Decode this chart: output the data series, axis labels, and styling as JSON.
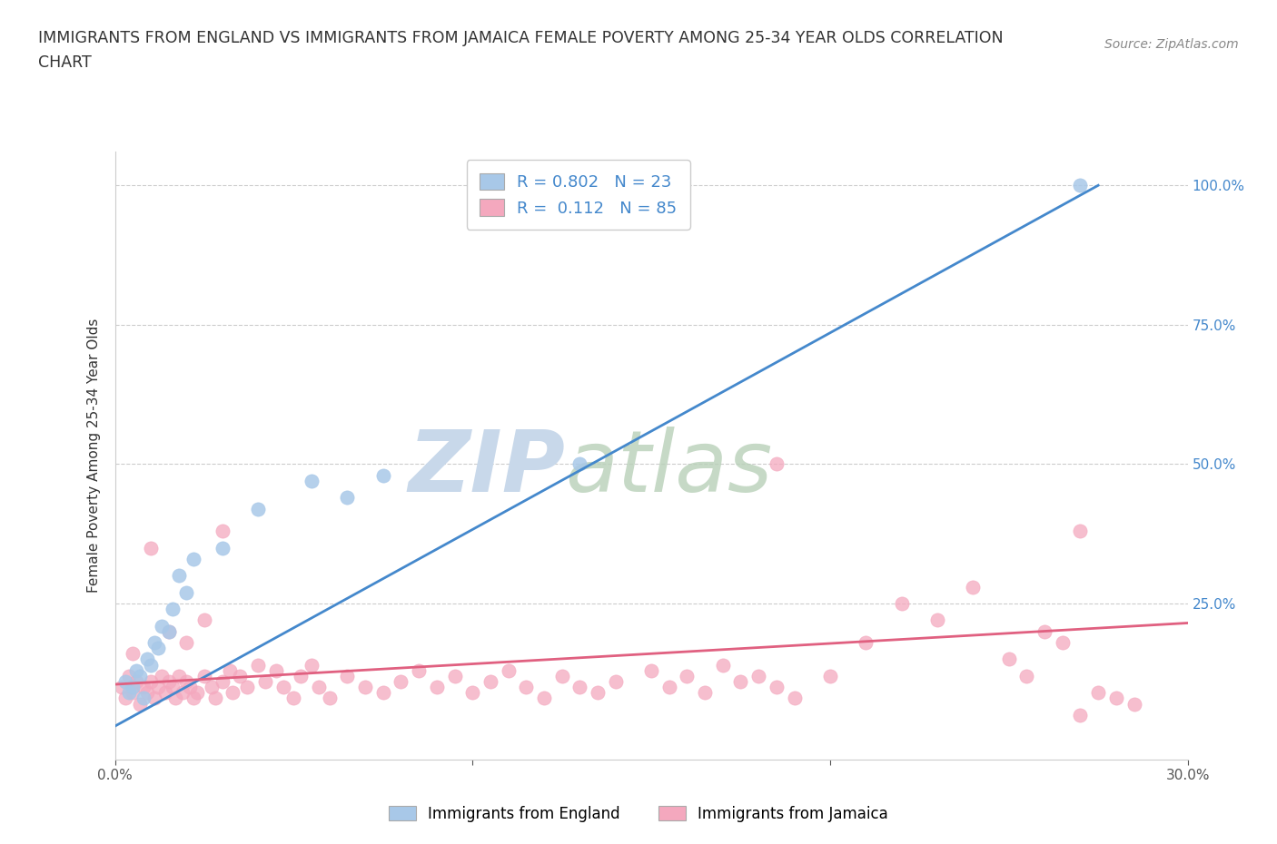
{
  "title_line1": "IMMIGRANTS FROM ENGLAND VS IMMIGRANTS FROM JAMAICA FEMALE POVERTY AMONG 25-34 YEAR OLDS CORRELATION",
  "title_line2": "CHART",
  "source": "Source: ZipAtlas.com",
  "xlim": [
    0.0,
    0.3
  ],
  "ylim": [
    -0.03,
    1.06
  ],
  "ylabel": "Female Poverty Among 25-34 Year Olds",
  "legend_label1": "Immigrants from England",
  "legend_label2": "Immigrants from Jamaica",
  "R1": 0.802,
  "N1": 23,
  "R2": 0.112,
  "N2": 85,
  "color1": "#a8c8e8",
  "color2": "#f4a8be",
  "line_color1": "#4488cc",
  "line_color2": "#e06080",
  "right_tick_color": "#4488cc",
  "watermark_color": "#ccd8e8",
  "eng_line_x0": 0.0,
  "eng_line_y0": 0.03,
  "eng_line_x1": 0.275,
  "eng_line_y1": 1.0,
  "jam_line_x0": 0.0,
  "jam_line_y0": 0.105,
  "jam_line_x1": 0.3,
  "jam_line_y1": 0.215,
  "eng_x": [
    0.003,
    0.004,
    0.005,
    0.006,
    0.007,
    0.008,
    0.009,
    0.01,
    0.011,
    0.012,
    0.013,
    0.015,
    0.016,
    0.018,
    0.02,
    0.022,
    0.03,
    0.04,
    0.055,
    0.065,
    0.075,
    0.13,
    0.27
  ],
  "eng_y": [
    0.11,
    0.09,
    0.1,
    0.13,
    0.12,
    0.08,
    0.15,
    0.14,
    0.18,
    0.17,
    0.21,
    0.2,
    0.24,
    0.3,
    0.27,
    0.33,
    0.35,
    0.42,
    0.47,
    0.44,
    0.48,
    0.5,
    1.0
  ],
  "jam_x": [
    0.002,
    0.003,
    0.004,
    0.005,
    0.006,
    0.007,
    0.008,
    0.009,
    0.01,
    0.011,
    0.012,
    0.013,
    0.014,
    0.015,
    0.016,
    0.017,
    0.018,
    0.019,
    0.02,
    0.021,
    0.022,
    0.023,
    0.025,
    0.027,
    0.028,
    0.03,
    0.032,
    0.033,
    0.035,
    0.037,
    0.04,
    0.042,
    0.045,
    0.047,
    0.05,
    0.052,
    0.055,
    0.057,
    0.06,
    0.065,
    0.07,
    0.075,
    0.08,
    0.085,
    0.09,
    0.095,
    0.1,
    0.105,
    0.11,
    0.115,
    0.12,
    0.125,
    0.13,
    0.135,
    0.14,
    0.15,
    0.155,
    0.16,
    0.165,
    0.17,
    0.175,
    0.18,
    0.185,
    0.19,
    0.2,
    0.21,
    0.22,
    0.23,
    0.24,
    0.25,
    0.255,
    0.26,
    0.265,
    0.27,
    0.275,
    0.28,
    0.285,
    0.005,
    0.01,
    0.015,
    0.02,
    0.025,
    0.03,
    0.185,
    0.27
  ],
  "jam_y": [
    0.1,
    0.08,
    0.12,
    0.09,
    0.11,
    0.07,
    0.1,
    0.09,
    0.11,
    0.08,
    0.1,
    0.12,
    0.09,
    0.11,
    0.1,
    0.08,
    0.12,
    0.09,
    0.11,
    0.1,
    0.08,
    0.09,
    0.12,
    0.1,
    0.08,
    0.11,
    0.13,
    0.09,
    0.12,
    0.1,
    0.14,
    0.11,
    0.13,
    0.1,
    0.08,
    0.12,
    0.14,
    0.1,
    0.08,
    0.12,
    0.1,
    0.09,
    0.11,
    0.13,
    0.1,
    0.12,
    0.09,
    0.11,
    0.13,
    0.1,
    0.08,
    0.12,
    0.1,
    0.09,
    0.11,
    0.13,
    0.1,
    0.12,
    0.09,
    0.14,
    0.11,
    0.12,
    0.1,
    0.08,
    0.12,
    0.18,
    0.25,
    0.22,
    0.28,
    0.15,
    0.12,
    0.2,
    0.18,
    0.05,
    0.09,
    0.08,
    0.07,
    0.16,
    0.35,
    0.2,
    0.18,
    0.22,
    0.38,
    0.5,
    0.38
  ]
}
